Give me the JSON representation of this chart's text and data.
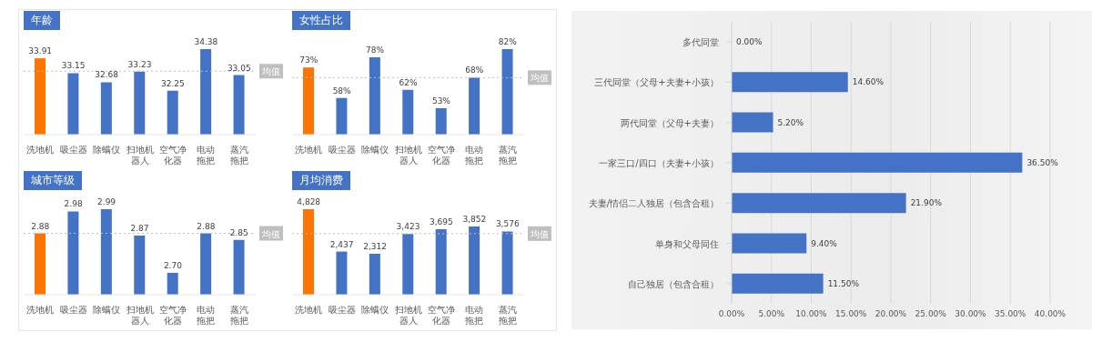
{
  "chart_data": [
    {
      "type": "bar",
      "title": "年龄",
      "categories": [
        "洗地机",
        "吸尘器",
        "除螨仪",
        "扫地机器人",
        "空气净化器",
        "电动拖把",
        "蒸汽拖把"
      ],
      "values": [
        33.91,
        33.15,
        32.68,
        33.23,
        32.25,
        34.38,
        33.05
      ],
      "colors": [
        "#ff7300",
        "#4472c4",
        "#4472c4",
        "#4472c4",
        "#4472c4",
        "#4472c4",
        "#4472c4"
      ],
      "data_labels": true,
      "ylim": [
        30,
        34.38
      ],
      "tick_labels": "x",
      "ref_lines": [
        {
          "axis": "y",
          "value": 33.25,
          "label": "均值",
          "color": "#bfbfbf",
          "line_style": "dotted"
        }
      ]
    },
    {
      "type": "bar",
      "title": "女性占比",
      "categories": [
        "洗地机",
        "吸尘器",
        "除螨仪",
        "扫地机器人",
        "空气净化器",
        "电动拖把",
        "蒸汽拖把"
      ],
      "values": [
        73,
        58,
        78,
        62,
        53,
        68,
        82
      ],
      "colors": [
        "#ff7300",
        "#4472c4",
        "#4472c4",
        "#4472c4",
        "#4472c4",
        "#4472c4",
        "#4472c4"
      ],
      "value_labels": [
        "73%",
        "58%",
        "78%",
        "62%",
        "53%",
        "68%",
        "82%"
      ],
      "ylim": [
        40,
        82
      ],
      "tick_labels": "x",
      "ref_lines": [
        {
          "axis": "y",
          "value": 68,
          "label": "均值",
          "color": "#bfbfbf",
          "line_style": "dotted"
        }
      ]
    },
    {
      "type": "bar",
      "title": "城市等级",
      "categories": [
        "洗地机",
        "吸尘器",
        "除螨仪",
        "扫地机器人",
        "空气净化器",
        "电动拖把",
        "蒸汽拖把"
      ],
      "values": [
        2.88,
        2.98,
        2.99,
        2.87,
        2.7,
        2.88,
        2.85
      ],
      "colors": [
        "#ff7300",
        "#4472c4",
        "#4472c4",
        "#4472c4",
        "#4472c4",
        "#4472c4",
        "#4472c4"
      ],
      "value_labels": [
        "2.88",
        "2.98",
        "2.99",
        "2.87",
        "2.70",
        "2.88",
        "2.85"
      ],
      "ylim": [
        2.6,
        2.99
      ],
      "tick_labels": "x",
      "ref_lines": [
        {
          "axis": "y",
          "value": 2.88,
          "label": "均值",
          "color": "#bfbfbf",
          "line_style": "dotted"
        }
      ]
    },
    {
      "type": "bar",
      "title": "月均消费",
      "categories": [
        "洗地机",
        "吸尘器",
        "除螨仪",
        "扫地机器人",
        "空气净化器",
        "电动拖把",
        "蒸汽拖把"
      ],
      "values": [
        4828,
        2437,
        2312,
        3423,
        3695,
        3852,
        3576
      ],
      "colors": [
        "#ff7300",
        "#4472c4",
        "#4472c4",
        "#4472c4",
        "#4472c4",
        "#4472c4",
        "#4472c4"
      ],
      "value_labels": [
        "4,828",
        "2,437",
        "2,312",
        "3,423",
        "3,695",
        "3,852",
        "3,576"
      ],
      "ylim": [
        0,
        4828
      ],
      "tick_labels": "x",
      "ref_lines": [
        {
          "axis": "y",
          "value": 3450,
          "label": "均值",
          "color": "#bfbfbf",
          "line_style": "dotted"
        }
      ]
    },
    {
      "type": "bar",
      "orientation": "horizontal",
      "categories": [
        "多代同堂",
        "三代同堂（父母+夫妻+小孩）",
        "两代同堂（父母+夫妻）",
        "一家三口/四口（夫妻+小孩）",
        "夫妻/情侣二人独居（包含合租）",
        "单身和父母同住",
        "自己独居（包含合租）"
      ],
      "values": [
        0,
        14.6,
        5.2,
        36.5,
        21.9,
        9.4,
        11.5
      ],
      "color": "#4472c4",
      "value_labels": [
        "0.00%",
        "14.60%",
        "5.20%",
        "36.50%",
        "21.90%",
        "9.40%",
        "11.50%"
      ],
      "xlim": [
        0,
        40
      ],
      "xticks": [
        {
          "value": 0,
          "label": "0.00%"
        },
        {
          "value": 5,
          "label": "5.00%"
        },
        {
          "value": 10,
          "label": "10.00%"
        },
        {
          "value": 15,
          "label": "15.00%"
        },
        {
          "value": 20,
          "label": "20.00%"
        },
        {
          "value": 25,
          "label": "25.00%"
        },
        {
          "value": 30,
          "label": "30.00%"
        },
        {
          "value": 35,
          "label": "35.00%"
        },
        {
          "value": 40,
          "label": "40.00%"
        }
      ],
      "grid": "x"
    }
  ]
}
